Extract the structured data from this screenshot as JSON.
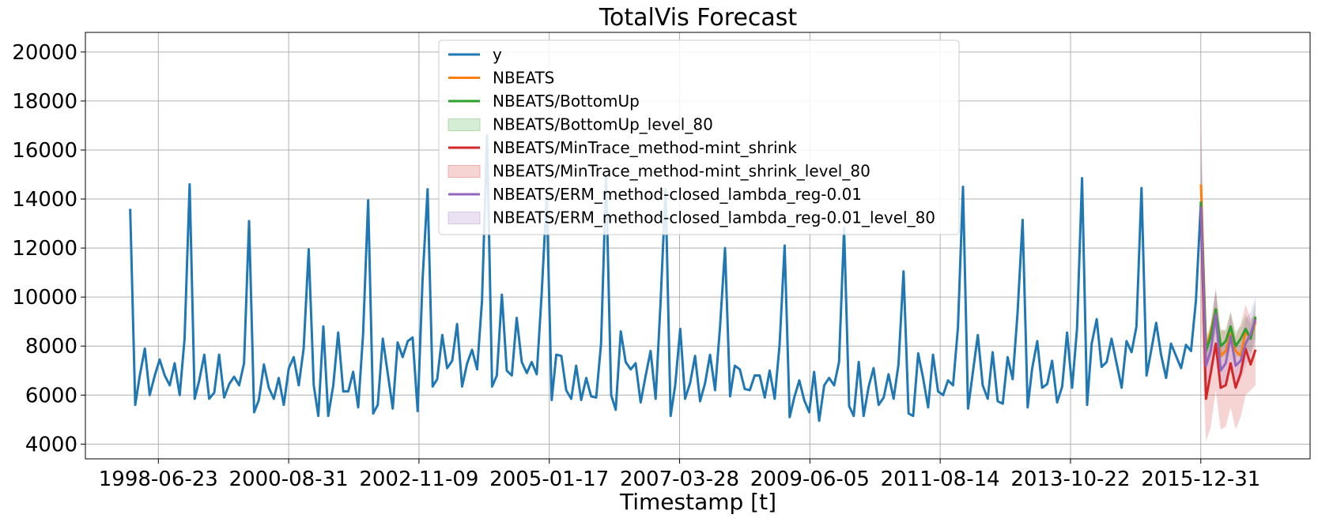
{
  "chart_data": {
    "type": "line",
    "title": "TotalVis Forecast",
    "xlabel": "Timestamp [t]",
    "ylabel": "",
    "x_ticks": [
      "1998-06-23",
      "2000-08-31",
      "2002-11-09",
      "2005-01-17",
      "2007-03-28",
      "2009-06-05",
      "2011-08-14",
      "2013-10-22",
      "2015-12-31"
    ],
    "y_ticks": [
      4000,
      6000,
      8000,
      10000,
      12000,
      14000,
      16000,
      18000,
      20000
    ],
    "xlim": [
      "1997-04-01",
      "2017-11-01"
    ],
    "ylim": [
      3400,
      20800
    ],
    "grid": true,
    "legend_position": "upper-center",
    "series": [
      {
        "name": "y",
        "color": "#1f77b4",
        "kind": "line",
        "start": "1998-01-01",
        "freq": "monthly",
        "values": [
          13600,
          5600,
          6800,
          7900,
          6000,
          6800,
          7450,
          6800,
          6400,
          7300,
          6000,
          8300,
          14600,
          5850,
          6600,
          7650,
          5850,
          6100,
          7650,
          5900,
          6450,
          6750,
          6400,
          7300,
          13100,
          5300,
          5800,
          7250,
          6300,
          5850,
          6700,
          5600,
          7100,
          7550,
          6400,
          7900,
          11950,
          6400,
          5150,
          8800,
          5150,
          6400,
          8550,
          6150,
          6150,
          6950,
          5500,
          8500,
          13950,
          5250,
          5600,
          8300,
          6900,
          5450,
          8150,
          7550,
          8200,
          8350,
          5350,
          10700,
          14400,
          6350,
          6650,
          8450,
          7100,
          7400,
          8900,
          6350,
          7300,
          7850,
          7050,
          9850,
          16600,
          6350,
          6800,
          10100,
          7000,
          6800,
          9150,
          7350,
          6900,
          7350,
          6850,
          10100,
          14100,
          5800,
          7650,
          7600,
          6200,
          5850,
          7200,
          5800,
          6700,
          5950,
          5900,
          8100,
          14900,
          6000,
          5400,
          8600,
          7350,
          7050,
          7300,
          5700,
          6800,
          7800,
          5850,
          9750,
          14400,
          5150,
          6400,
          8700,
          5850,
          6500,
          7600,
          5750,
          6500,
          7650,
          6200,
          8750,
          12000,
          5950,
          7200,
          7050,
          6250,
          6200,
          6800,
          6800,
          5900,
          7000,
          5850,
          8050,
          12100,
          5100,
          5900,
          6600,
          5800,
          5300,
          6950,
          4950,
          6400,
          6700,
          6400,
          7350,
          12800,
          5550,
          5150,
          7350,
          5150,
          6350,
          7100,
          5600,
          5900,
          6850,
          5850,
          7250,
          11050,
          5250,
          5150,
          7700,
          6700,
          5500,
          7650,
          6150,
          6000,
          6600,
          6400,
          8750,
          14500,
          5450,
          6900,
          8450,
          6400,
          5850,
          7750,
          5750,
          5650,
          7550,
          6650,
          9350,
          13150,
          5500,
          7100,
          8200,
          6300,
          6450,
          7400,
          5700,
          6350,
          8550,
          6300,
          8700,
          14850,
          5600,
          8100,
          9100,
          7150,
          7350,
          8300,
          7300,
          6300,
          8200,
          7750,
          8800,
          14450,
          6800,
          7800,
          8950,
          7650,
          6700,
          8100,
          7600,
          7100,
          8050,
          7800,
          9850,
          13900
        ]
      },
      {
        "name": "NBEATS",
        "color": "#ff7f0e",
        "kind": "line",
        "start": "2016-01-01",
        "freq": "monthly",
        "values": [
          14600,
          7900,
          8600,
          9500,
          7600,
          7800,
          8500,
          7800,
          7600,
          8600,
          8300,
          9000
        ]
      },
      {
        "name": "NBEATS/BottomUp",
        "color": "#2ca02c",
        "kind": "line",
        "start": "2016-01-01",
        "freq": "monthly",
        "values": [
          13900,
          7800,
          8400,
          9500,
          8000,
          8200,
          8800,
          8000,
          8300,
          8700,
          8300,
          9200
        ]
      },
      {
        "name": "NBEATS/BottomUp_level_80",
        "color": "#2ca02c",
        "kind": "band",
        "start": "2016-01-01",
        "freq": "monthly",
        "lower": [
          11500,
          7300,
          7900,
          8600,
          7500,
          7600,
          8100,
          7500,
          7700,
          8000,
          7700,
          8400
        ],
        "upper": [
          16200,
          8400,
          8900,
          10300,
          8600,
          8700,
          9400,
          8600,
          8800,
          9300,
          8900,
          9800
        ]
      },
      {
        "name": "NBEATS/MinTrace_method-mint_shrink",
        "color": "#d62728",
        "kind": "line",
        "start": "2016-01-01",
        "freq": "monthly",
        "values": [
          13500,
          5850,
          6900,
          8100,
          6300,
          6400,
          7300,
          6300,
          6900,
          7900,
          7250,
          7850
        ]
      },
      {
        "name": "NBEATS/MinTrace_method-mint_shrink_level_80",
        "color": "#d62728",
        "kind": "band",
        "start": "2016-01-01",
        "freq": "monthly",
        "lower": [
          9000,
          4100,
          4700,
          6200,
          4600,
          4700,
          5500,
          4600,
          5100,
          6000,
          6200,
          6400
        ],
        "upper": [
          18000,
          7600,
          8900,
          10300,
          8700,
          8600,
          9400,
          8400,
          8900,
          9700,
          9100,
          9300
        ]
      },
      {
        "name": "NBEATS/ERM_method-closed_lambda_reg-0.01",
        "color": "#9467bd",
        "kind": "line",
        "start": "2016-01-01",
        "freq": "monthly",
        "values": [
          13700,
          7200,
          7800,
          9300,
          7000,
          7300,
          8400,
          7200,
          7400,
          8100,
          8500,
          9100
        ]
      },
      {
        "name": "NBEATS/ERM_method-closed_lambda_reg-0.01_level_80",
        "color": "#9467bd",
        "kind": "band",
        "start": "2016-01-01",
        "freq": "monthly",
        "lower": [
          11000,
          6300,
          6900,
          8300,
          6200,
          6500,
          7500,
          6400,
          6600,
          7200,
          7600,
          8200
        ],
        "upper": [
          16500,
          8200,
          8800,
          10400,
          7900,
          8200,
          9300,
          8100,
          8300,
          9100,
          9400,
          10000
        ]
      }
    ]
  }
}
